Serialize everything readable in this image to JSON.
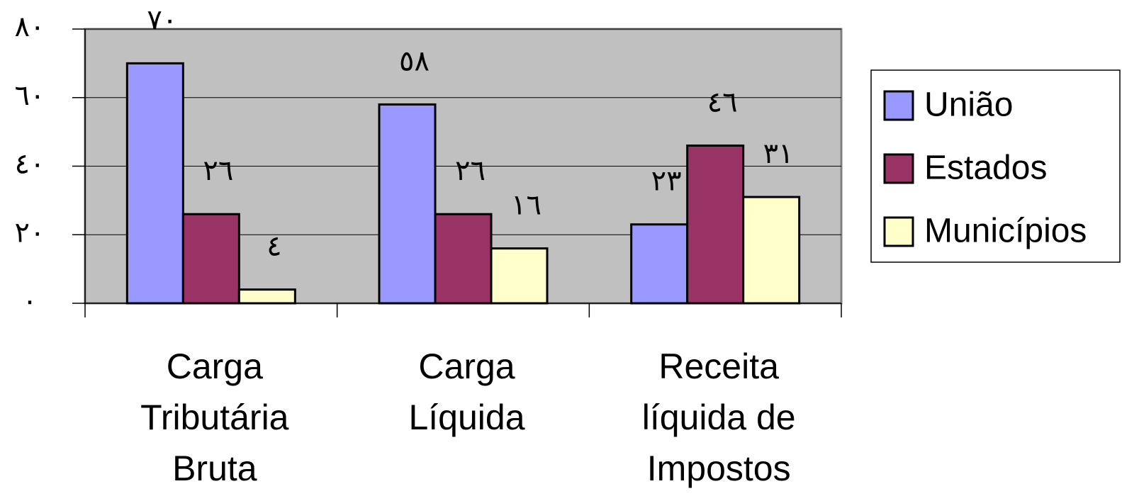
{
  "chart_data": {
    "type": "bar",
    "categories": [
      "Carga Tributária Bruta",
      "Carga Líquida",
      "Receita líquida de Impostos"
    ],
    "series": [
      {
        "name": "União",
        "color": "#9999ff",
        "values": [
          70,
          58,
          23
        ],
        "value_labels": [
          "٧٠",
          "٥٨",
          "٢٣"
        ]
      },
      {
        "name": "Estados",
        "color": "#993366",
        "values": [
          26,
          26,
          46
        ],
        "value_labels": [
          "٢٦",
          "٢٦",
          "٤٦"
        ]
      },
      {
        "name": "Municípios",
        "color": "#ffffcc",
        "values": [
          4,
          16,
          31
        ],
        "value_labels": [
          "٤",
          "١٦",
          "٣١"
        ]
      }
    ],
    "ylim": [
      0,
      80
    ],
    "yticks": [
      {
        "value": 0,
        "label": "٠"
      },
      {
        "value": 20,
        "label": "٢٠"
      },
      {
        "value": 40,
        "label": "٤٠"
      },
      {
        "value": 60,
        "label": "٦٠"
      },
      {
        "value": 80,
        "label": "٨٠"
      }
    ],
    "grid": true,
    "plot_background": "#c0c0c0",
    "legend": "right"
  }
}
